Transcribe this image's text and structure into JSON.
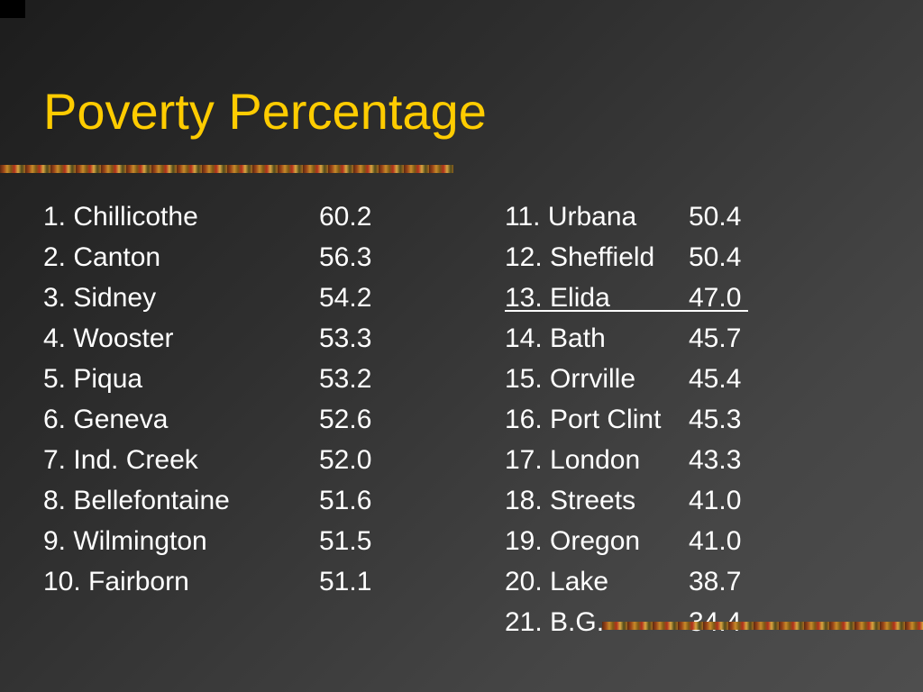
{
  "slide": {
    "title": "Poverty Percentage",
    "colors": {
      "title": "#ffcc00",
      "text": "#ffffff",
      "background": "#3a3a3a"
    }
  },
  "table": {
    "left": [
      {
        "name": "1. Chillicothe",
        "value": "60.2"
      },
      {
        "name": "2. Canton",
        "value": "56.3"
      },
      {
        "name": "3. Sidney",
        "value": "54.2"
      },
      {
        "name": "4. Wooster",
        "value": "53.3"
      },
      {
        "name": "5. Piqua",
        "value": "53.2"
      },
      {
        "name": "6. Geneva",
        "value": "52.6"
      },
      {
        "name": "7. Ind. Creek",
        "value": "52.0"
      },
      {
        "name": "8. Bellefontaine",
        "value": "51.6"
      },
      {
        "name": "9. Wilmington",
        "value": "51.5"
      },
      {
        "name": "10. Fairborn",
        "value": "51.1"
      }
    ],
    "right": [
      {
        "name": "11. Urbana",
        "value": "50.4"
      },
      {
        "name": "12. Sheffield",
        "value": "50.4"
      },
      {
        "name": "13. Elida",
        "value": "47.0",
        "underlined": true
      },
      {
        "name": "14. Bath",
        "value": "45.7"
      },
      {
        "name": "15. Orrville",
        "value": "45.4"
      },
      {
        "name": "16. Port Clint",
        "value": "45.3"
      },
      {
        "name": "17. London",
        "value": "43.3"
      },
      {
        "name": "18. Streets",
        "value": "41.0"
      },
      {
        "name": "19. Oregon",
        "value": "41.0"
      },
      {
        "name": "20. Lake",
        "value": "38.7"
      },
      {
        "name": "21. B.G.",
        "value": "34.4"
      }
    ]
  }
}
